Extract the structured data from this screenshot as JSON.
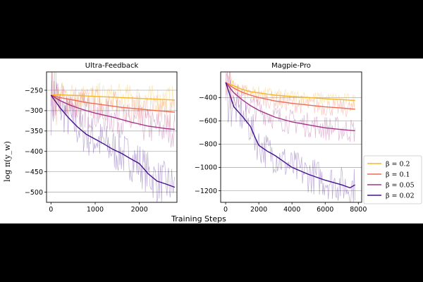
{
  "shared": {
    "ylabel": "log π(y_w)",
    "xlabel": "Training Steps",
    "legend": [
      {
        "label": "β = 0.2",
        "color": "#f5b72a"
      },
      {
        "label": "β = 0.1",
        "color": "#ee6b55"
      },
      {
        "label": "β = 0.05",
        "color": "#a3338a"
      },
      {
        "label": "β = 0.02",
        "color": "#45108c"
      }
    ]
  },
  "chart_data": [
    {
      "type": "line",
      "title": "Ultra-Feedback",
      "xlim": [
        -100,
        2850
      ],
      "ylim": [
        -525,
        -205
      ],
      "xticks": [
        0,
        1000,
        2000
      ],
      "xtick_labels": [
        "0",
        "1000",
        "2000"
      ],
      "yticks": [
        -250,
        -300,
        -350,
        -400,
        -450,
        -500
      ],
      "ytick_labels": [
        "−250",
        "−300",
        "−350",
        "−400",
        "−450",
        "−500"
      ],
      "grid": "horizontal",
      "series": [
        {
          "name": "β = 0.2",
          "color": "#f5b72a",
          "noise": 35,
          "x": [
            0,
            200,
            400,
            600,
            800,
            1000,
            1200,
            1400,
            1600,
            1800,
            2000,
            2200,
            2400,
            2600,
            2800
          ],
          "y": [
            -262,
            -261,
            -262,
            -263,
            -264,
            -265,
            -266,
            -267,
            -268,
            -269,
            -270,
            -271,
            -272,
            -273,
            -274
          ]
        },
        {
          "name": "β = 0.1",
          "color": "#ee6b55",
          "noise": 40,
          "x": [
            0,
            200,
            400,
            600,
            800,
            1000,
            1200,
            1400,
            1600,
            1800,
            2000,
            2200,
            2400,
            2600,
            2800
          ],
          "y": [
            -262,
            -268,
            -272,
            -276,
            -280,
            -283,
            -286,
            -289,
            -292,
            -294,
            -296,
            -298,
            -300,
            -302,
            -304
          ]
        },
        {
          "name": "β = 0.05",
          "color": "#a3338a",
          "noise": 45,
          "x": [
            0,
            200,
            400,
            600,
            800,
            1000,
            1200,
            1400,
            1600,
            1800,
            2000,
            2200,
            2400,
            2600,
            2800
          ],
          "y": [
            -262,
            -275,
            -285,
            -293,
            -300,
            -306,
            -311,
            -316,
            -322,
            -328,
            -333,
            -338,
            -341,
            -344,
            -346
          ]
        },
        {
          "name": "β = 0.02",
          "color": "#45108c",
          "noise": 55,
          "x": [
            0,
            200,
            400,
            600,
            800,
            1000,
            1200,
            1400,
            1600,
            1800,
            2000,
            2200,
            2400,
            2600,
            2800
          ],
          "y": [
            -262,
            -292,
            -318,
            -340,
            -358,
            -370,
            -382,
            -395,
            -405,
            -418,
            -430,
            -455,
            -473,
            -480,
            -488
          ]
        }
      ]
    },
    {
      "type": "line",
      "title": "Magpie-Pro",
      "xlim": [
        -300,
        8200
      ],
      "ylim": [
        -1300,
        -180
      ],
      "xticks": [
        0,
        2000,
        4000,
        6000,
        8000
      ],
      "xtick_labels": [
        "0",
        "2000",
        "4000",
        "6000",
        "8000"
      ],
      "yticks": [
        -400,
        -600,
        -800,
        -1000,
        -1200
      ],
      "ytick_labels": [
        "−400",
        "−600",
        "−800",
        "−1000",
        "−1200"
      ],
      "grid": "horizontal",
      "series": [
        {
          "name": "β = 0.2",
          "color": "#f5b72a",
          "noise": 60,
          "x": [
            0,
            500,
            1000,
            1500,
            2000,
            2500,
            3000,
            4000,
            5000,
            6000,
            7000,
            7800
          ],
          "y": [
            -270,
            -300,
            -330,
            -350,
            -360,
            -370,
            -380,
            -392,
            -400,
            -410,
            -418,
            -425
          ]
        },
        {
          "name": "β = 0.1",
          "color": "#ee6b55",
          "noise": 80,
          "x": [
            0,
            500,
            1000,
            1500,
            2000,
            2500,
            3000,
            4000,
            5000,
            6000,
            7000,
            7800
          ],
          "y": [
            -270,
            -320,
            -355,
            -380,
            -400,
            -415,
            -430,
            -450,
            -465,
            -480,
            -490,
            -500
          ]
        },
        {
          "name": "β = 0.05",
          "color": "#a3338a",
          "noise": 110,
          "x": [
            0,
            500,
            1000,
            1500,
            2000,
            2500,
            3000,
            4000,
            5000,
            6000,
            7000,
            7800
          ],
          "y": [
            -270,
            -360,
            -420,
            -470,
            -510,
            -540,
            -570,
            -610,
            -635,
            -660,
            -675,
            -685
          ]
        },
        {
          "name": "β = 0.02",
          "color": "#45108c",
          "noise": 160,
          "x": [
            0,
            500,
            1000,
            1500,
            1800,
            2000,
            2500,
            3000,
            3500,
            4000,
            5000,
            6000,
            7000,
            7500,
            7800
          ],
          "y": [
            -270,
            -480,
            -560,
            -650,
            -750,
            -810,
            -860,
            -900,
            -950,
            -1000,
            -1060,
            -1110,
            -1150,
            -1175,
            -1150
          ]
        }
      ]
    }
  ]
}
